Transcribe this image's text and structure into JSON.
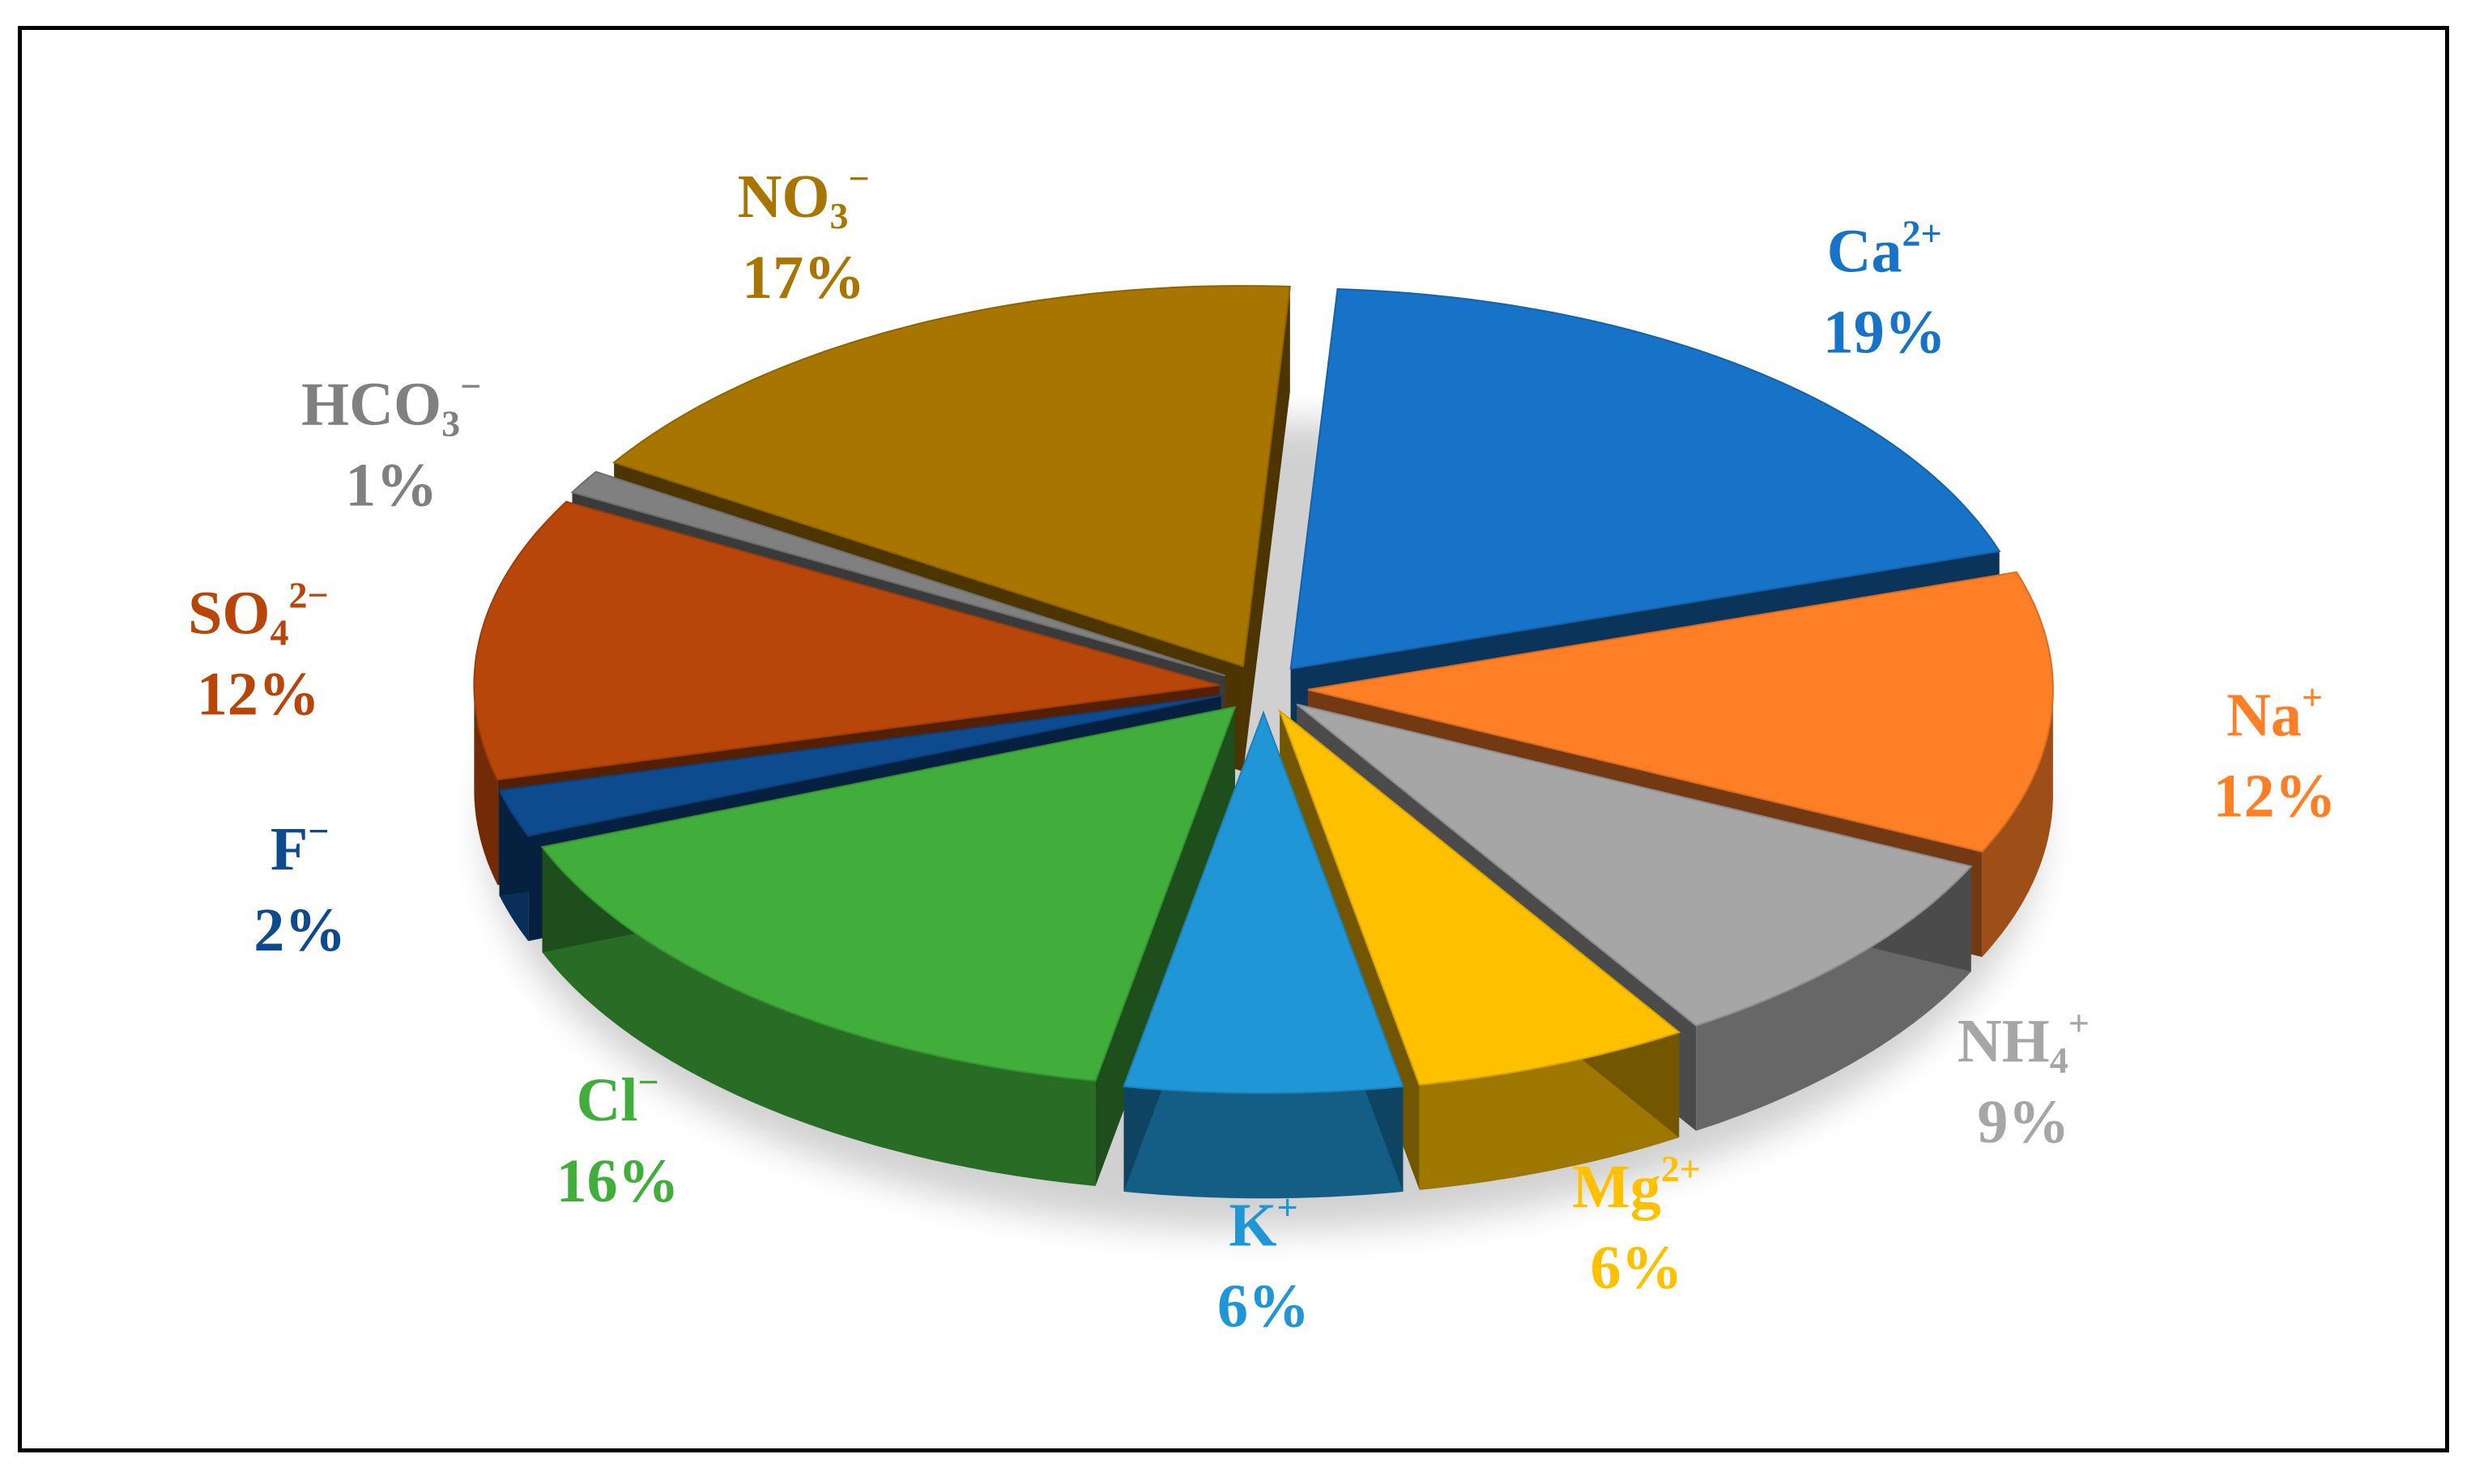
{
  "chart_data": {
    "type": "pie",
    "style": "3d-exploded",
    "slices": [
      {
        "label": "Ca",
        "charge": "2+",
        "sub": "",
        "value": 19,
        "value_label": "19%",
        "color": "#1773C7",
        "label_color": "#1773C7"
      },
      {
        "label": "Na",
        "charge": "+",
        "sub": "",
        "value": 12,
        "value_label": "12%",
        "color": "#FF7F27",
        "label_color": "#FF7F27"
      },
      {
        "label": "NH",
        "charge": "+",
        "sub": "4",
        "value": 9,
        "value_label": "9%",
        "color": "#A6A6A6",
        "label_color": "#A6A6A6"
      },
      {
        "label": "Mg",
        "charge": "2+",
        "sub": "",
        "value": 6,
        "value_label": "6%",
        "color": "#FFC000",
        "label_color": "#FFC000"
      },
      {
        "label": "K",
        "charge": "+",
        "sub": "",
        "value": 6,
        "value_label": "6%",
        "color": "#2196D6",
        "label_color": "#2196D6"
      },
      {
        "label": "Cl",
        "charge": "−",
        "sub": "",
        "value": 16,
        "value_label": "16%",
        "color": "#41AE3C",
        "label_color": "#41AE3C"
      },
      {
        "label": "F",
        "charge": "−",
        "sub": "",
        "value": 2,
        "value_label": "2%",
        "color": "#0E4A8E",
        "label_color": "#0E4A8E"
      },
      {
        "label": "SO",
        "charge": "2−",
        "sub": "4",
        "value": 12,
        "value_label": "12%",
        "color": "#B8460A",
        "label_color": "#B8460A"
      },
      {
        "label": "HCO",
        "charge": "−",
        "sub": "3",
        "value": 1,
        "value_label": "1%",
        "color": "#808080",
        "label_color": "#808080"
      },
      {
        "label": "NO",
        "charge": "−",
        "sub": "3",
        "value": 17,
        "value_label": "17%",
        "color": "#A87600",
        "label_color": "#A87600"
      }
    ]
  }
}
